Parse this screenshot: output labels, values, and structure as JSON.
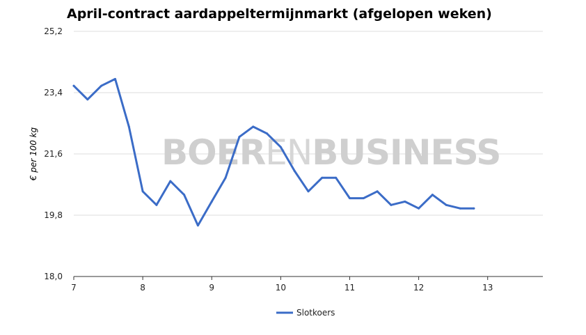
{
  "page": {
    "title": "April-contract aardappeltermijnmarkt (afgelopen weken)",
    "watermark": {
      "part1": "BOER",
      "part2": "EN",
      "part3": "BUSINESS"
    }
  },
  "colors": {
    "series": "#3b6cc7",
    "grid": "#dddddd",
    "axis": "#333333",
    "watermark": "#cfcfcf"
  },
  "chart_data": {
    "type": "line",
    "title": "April-contract aardappeltermijnmarkt (afgelopen weken)",
    "xlabel": "",
    "ylabel": "€ per 100 kg",
    "xlim": [
      7,
      13.8
    ],
    "ylim": [
      18.0,
      25.2
    ],
    "yticks": [
      {
        "value": 18.0,
        "label": "18,0"
      },
      {
        "value": 19.8,
        "label": "19,8"
      },
      {
        "value": 21.6,
        "label": "21,6"
      },
      {
        "value": 23.4,
        "label": "23,4"
      },
      {
        "value": 25.2,
        "label": "25,2"
      }
    ],
    "xticks": [
      {
        "value": 7,
        "label": "7"
      },
      {
        "value": 8,
        "label": "8"
      },
      {
        "value": 9,
        "label": "9"
      },
      {
        "value": 10,
        "label": "10"
      },
      {
        "value": 11,
        "label": "11"
      },
      {
        "value": 12,
        "label": "12"
      },
      {
        "value": 13,
        "label": "13"
      }
    ],
    "grid": true,
    "legend": "bottom-center",
    "series": [
      {
        "name": "Slotkoers",
        "x": [
          7.0,
          7.2,
          7.4,
          7.6,
          7.8,
          8.0,
          8.2,
          8.4,
          8.6,
          8.8,
          9.0,
          9.2,
          9.4,
          9.6,
          9.8,
          10.0,
          10.2,
          10.4,
          10.6,
          10.8,
          11.0,
          11.2,
          11.4,
          11.6,
          11.8,
          12.0,
          12.2,
          12.4,
          12.6,
          12.8
        ],
        "values": [
          23.6,
          23.2,
          23.6,
          23.8,
          22.4,
          20.5,
          20.1,
          20.8,
          20.4,
          19.5,
          20.2,
          20.9,
          22.1,
          22.4,
          22.2,
          21.8,
          21.1,
          20.5,
          20.9,
          20.9,
          20.3,
          20.3,
          20.5,
          20.1,
          20.2,
          20.0,
          20.4,
          20.1,
          20.0,
          20.0
        ]
      }
    ]
  }
}
